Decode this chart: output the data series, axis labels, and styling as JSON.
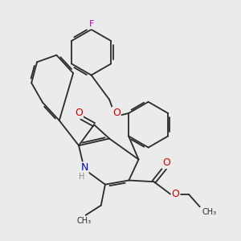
{
  "bg_color": "#ebebeb",
  "bond_color": "#2a2a2a",
  "bond_lw": 1.3,
  "atom_colors": {
    "O": "#cc0000",
    "N": "#0000bb",
    "F": "#bb00bb",
    "H": "#888888",
    "C": "#2a2a2a"
  },
  "font_size": 8,
  "dbo": 0.07
}
